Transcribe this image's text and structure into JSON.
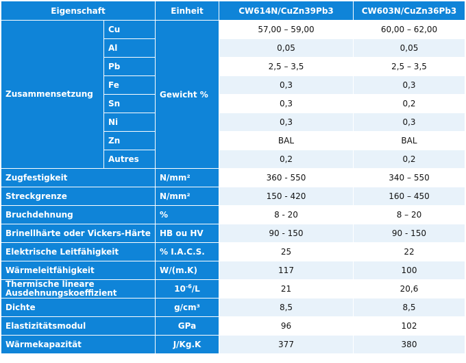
{
  "header": {
    "property": "Eigenschaft",
    "unit": "Einheit",
    "alloy1": "CW614N/CuZn39Pb3",
    "alloy2": "CW603N/CuZn36Pb3"
  },
  "composition": {
    "label": "Zusammensetzung",
    "unit": "Gewicht %",
    "elements": [
      {
        "el": "Cu",
        "v1": "57,00 – 59,00",
        "v2": "60,00 – 62,00"
      },
      {
        "el": "Al",
        "v1": "0,05",
        "v2": "0,05"
      },
      {
        "el": "Pb",
        "v1": "2,5 – 3,5",
        "v2": "2,5 – 3,5"
      },
      {
        "el": "Fe",
        "v1": "0,3",
        "v2": "0,3"
      },
      {
        "el": "Sn",
        "v1": "0,3",
        "v2": "0,2"
      },
      {
        "el": "Ni",
        "v1": "0,3",
        "v2": "0,3"
      },
      {
        "el": "Zn",
        "v1": "BAL",
        "v2": "BAL"
      },
      {
        "el": "Autres",
        "v1": "0,2",
        "v2": "0,2"
      }
    ]
  },
  "properties": [
    {
      "label": "Zugfestigkeit",
      "unit": "N/mm²",
      "v1": "360 - 550",
      "v2": "340 – 550"
    },
    {
      "label": "Streckgrenze",
      "unit": "N/mm²",
      "v1": "150 - 420",
      "v2": "160 – 450"
    },
    {
      "label": "Bruchdehnung",
      "unit": "%",
      "v1": "8 - 20",
      "v2": "8 – 20"
    },
    {
      "label": "Brinellhärte oder Vickers-Härte",
      "unit": "HB ou HV",
      "v1": "90 - 150",
      "v2": "90 - 150"
    },
    {
      "label": "Elektrische Leitfähigkeit",
      "unit": "% I.A.C.S.",
      "v1": "25",
      "v2": "22"
    },
    {
      "label": "Wärmeleitfähigkeit",
      "unit": "W/(m.K)",
      "v1": "117",
      "v2": "100"
    },
    {
      "label": "Thermische lineare Ausdehnungskoeffizient",
      "unit_base": "10",
      "unit_exp": "-6",
      "unit_tail": "/L",
      "v1": "21",
      "v2": "20,6"
    },
    {
      "label": "Dichte",
      "unit": "g/cm³",
      "v1": "8,5",
      "v2": "8,5"
    },
    {
      "label": "Elastizitätsmodul",
      "unit": "GPa",
      "v1": "96",
      "v2": "102"
    },
    {
      "label": "Wärmekapazität",
      "unit": "J/Kg.K",
      "v1": "377",
      "v2": "380"
    }
  ]
}
